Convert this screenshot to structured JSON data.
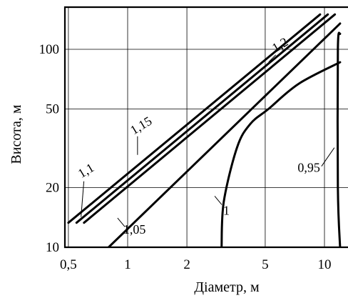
{
  "chart_data": {
    "type": "line",
    "title": "",
    "xlabel": "Діаметр, м",
    "ylabel": "Висота, м",
    "x_scale": "log",
    "y_scale": "log",
    "xlim": [
      0.5,
      12
    ],
    "ylim": [
      10,
      150
    ],
    "grid": true,
    "x_ticks": [
      {
        "value": 0.5,
        "label": "0,5"
      },
      {
        "value": 1,
        "label": "1"
      },
      {
        "value": 2,
        "label": "2"
      },
      {
        "value": 5,
        "label": "5"
      },
      {
        "value": 10,
        "label": "10"
      }
    ],
    "y_ticks": [
      {
        "value": 10,
        "label": "10"
      },
      {
        "value": 20,
        "label": "20"
      },
      {
        "value": 50,
        "label": "50"
      },
      {
        "value": 100,
        "label": "100"
      }
    ],
    "series": [
      {
        "name": "1,2",
        "x": [
          0.5,
          9.5
        ],
        "y": [
          13.3,
          150
        ],
        "label_at": {
          "x": 6.1,
          "y": 101
        }
      },
      {
        "name": "1,15",
        "x": [
          0.55,
          10.4
        ],
        "y": [
          13.3,
          150
        ],
        "label_at": {
          "x": 1.2,
          "y": 39.5
        }
      },
      {
        "name": "1,1",
        "x": [
          0.6,
          11.3
        ],
        "y": [
          13.3,
          150
        ],
        "label_at": {
          "x": 0.63,
          "y": 23.4
        }
      },
      {
        "name": "1,05",
        "x": [
          0.8,
          12
        ],
        "y": [
          10,
          135
        ],
        "label_at": {
          "x": 0.95,
          "y": 11.7
        }
      },
      {
        "name": "1",
        "x": [
          3.0,
          3.08,
          3.6,
          4.2,
          5.2,
          7.4,
          12
        ],
        "y": [
          10,
          17,
          32,
          42,
          50,
          67,
          86
        ],
        "label_at": {
          "x": 3.06,
          "y": 14.6
        }
      },
      {
        "name": "0,95",
        "x": [
          12,
          11.7,
          11.7,
          12
        ],
        "y": [
          10,
          20,
          100,
          120
        ],
        "label_at": {
          "x": 9.5,
          "y": 24
        }
      }
    ]
  }
}
